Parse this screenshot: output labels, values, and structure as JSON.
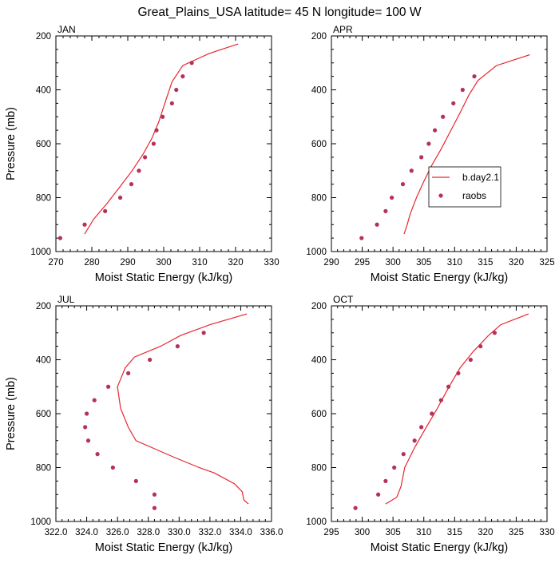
{
  "colors": {
    "model_line": "#e8262f",
    "obs_marker": "#b4325a",
    "axis": "#000000"
  },
  "figure_title": "Great_Plains_USA  latitude= 45 N longitude= 100 W",
  "chart_data": [
    {
      "type": "line",
      "panel_label": "JAN",
      "xlabel": "Moist Static Energy (kJ/kg)",
      "ylabel": "Pressure (mb)",
      "xlim": [
        270,
        330
      ],
      "ylim": [
        1000,
        200
      ],
      "y_reversed": true,
      "xticks": [
        270,
        280,
        290,
        300,
        310,
        320,
        330
      ],
      "xtick_labels": [
        "270",
        "280",
        "290",
        "300",
        "310",
        "320",
        "330"
      ],
      "yticks": [
        200,
        400,
        600,
        800,
        1000
      ],
      "ytick_labels": [
        "200",
        "400",
        "600",
        "800",
        "1000"
      ],
      "series": [
        {
          "name": "b.day2.1",
          "kind": "line",
          "x": [
            278.0,
            280.5,
            284.3,
            287.8,
            291.2,
            294.2,
            296.7,
            298.6,
            300.3,
            302.3,
            305.3,
            312.7,
            320.7
          ],
          "y": [
            935,
            880,
            820,
            760,
            700,
            640,
            580,
            520,
            450,
            370,
            310,
            265,
            230
          ]
        },
        {
          "name": "raobs",
          "kind": "marker",
          "x": [
            271.2,
            278.0,
            283.7,
            287.9,
            291.0,
            293.1,
            294.8,
            297.2,
            298.0,
            299.7,
            302.3,
            303.5,
            305.3,
            307.8
          ],
          "y": [
            950,
            900,
            850,
            800,
            750,
            700,
            650,
            600,
            550,
            500,
            450,
            400,
            350,
            300
          ]
        }
      ]
    },
    {
      "type": "line",
      "panel_label": "APR",
      "xlabel": "Moist Static Energy (kJ/kg)",
      "ylabel": "",
      "xlim": [
        290,
        325
      ],
      "ylim": [
        1000,
        200
      ],
      "y_reversed": true,
      "xticks": [
        290,
        295,
        300,
        305,
        310,
        315,
        320,
        325
      ],
      "xtick_labels": [
        "290",
        "295",
        "300",
        "305",
        "310",
        "315",
        "320",
        "325"
      ],
      "yticks": [
        200,
        400,
        600,
        800,
        1000
      ],
      "ytick_labels": [
        "200",
        "400",
        "600",
        "800",
        "1000"
      ],
      "legend": {
        "entries": [
          "b.day2.1",
          "raobs"
        ],
        "location": "center-right"
      },
      "series": [
        {
          "name": "b.day2.1",
          "kind": "line",
          "x": [
            301.8,
            302.3,
            302.8,
            303.8,
            305.0,
            306.3,
            307.8,
            309.4,
            311.0,
            312.3,
            313.8,
            316.8,
            322.2
          ],
          "y": [
            935,
            900,
            860,
            800,
            740,
            680,
            620,
            550,
            480,
            420,
            365,
            310,
            270
          ]
        },
        {
          "name": "raobs",
          "kind": "marker",
          "x": [
            294.9,
            297.4,
            298.8,
            299.8,
            301.6,
            303.0,
            304.6,
            305.8,
            306.8,
            308.1,
            309.8,
            311.3,
            313.2
          ],
          "y": [
            950,
            900,
            850,
            800,
            750,
            700,
            650,
            600,
            550,
            500,
            450,
            400,
            350
          ]
        }
      ]
    },
    {
      "type": "line",
      "panel_label": "JUL",
      "xlabel": "Moist Static Energy (kJ/kg)",
      "ylabel": "Pressure (mb)",
      "xlim": [
        322,
        336
      ],
      "ylim": [
        1000,
        200
      ],
      "y_reversed": true,
      "xticks": [
        322,
        324,
        326,
        328,
        330,
        332,
        334,
        336
      ],
      "xtick_labels": [
        "322.0",
        "324.0",
        "326.0",
        "328.0",
        "330.0",
        "332.0",
        "334.0",
        "336.0"
      ],
      "yticks": [
        200,
        400,
        600,
        800,
        1000
      ],
      "ytick_labels": [
        "200",
        "400",
        "600",
        "800",
        "1000"
      ],
      "series": [
        {
          "name": "b.day2.1",
          "kind": "line",
          "x": [
            334.5,
            334.2,
            334.1,
            333.6,
            332.3,
            331.3,
            329.6,
            327.2,
            326.7,
            326.2,
            326.0,
            326.5,
            327.1,
            328.8,
            330.1,
            332.0,
            334.4
          ],
          "y": [
            935,
            920,
            890,
            860,
            820,
            800,
            760,
            700,
            650,
            580,
            500,
            430,
            390,
            350,
            310,
            270,
            230
          ]
        },
        {
          "name": "raobs",
          "kind": "marker",
          "x": [
            328.4,
            328.4,
            327.2,
            325.7,
            324.7,
            324.1,
            323.9,
            324.0,
            324.5,
            325.4,
            326.7,
            328.1,
            329.9,
            331.6
          ],
          "y": [
            950,
            900,
            850,
            800,
            750,
            700,
            650,
            600,
            550,
            500,
            450,
            400,
            350,
            300
          ]
        }
      ]
    },
    {
      "type": "line",
      "panel_label": "OCT",
      "xlabel": "Moist Static Energy (kJ/kg)",
      "ylabel": "",
      "xlim": [
        295,
        330
      ],
      "ylim": [
        1000,
        200
      ],
      "y_reversed": true,
      "xticks": [
        295,
        300,
        305,
        310,
        315,
        320,
        325,
        330
      ],
      "xtick_labels": [
        "295",
        "300",
        "305",
        "310",
        "315",
        "320",
        "325",
        "330"
      ],
      "yticks": [
        200,
        400,
        600,
        800,
        1000
      ],
      "ytick_labels": [
        "200",
        "400",
        "600",
        "800",
        "1000"
      ],
      "series": [
        {
          "name": "b.day2.1",
          "kind": "line",
          "x": [
            303.8,
            305.6,
            306.3,
            306.9,
            308.4,
            310.4,
            312.2,
            314.1,
            315.9,
            318.0,
            320.5,
            322.5,
            327.0
          ],
          "y": [
            935,
            910,
            870,
            800,
            730,
            650,
            580,
            500,
            430,
            370,
            310,
            270,
            230
          ]
        },
        {
          "name": "raobs",
          "kind": "marker",
          "x": [
            298.9,
            302.6,
            303.8,
            305.2,
            306.7,
            308.5,
            309.6,
            311.3,
            312.8,
            314.0,
            315.6,
            317.6,
            319.2,
            321.5
          ],
          "y": [
            950,
            900,
            850,
            800,
            750,
            700,
            650,
            600,
            550,
            500,
            450,
            400,
            350,
            300
          ]
        }
      ]
    }
  ]
}
